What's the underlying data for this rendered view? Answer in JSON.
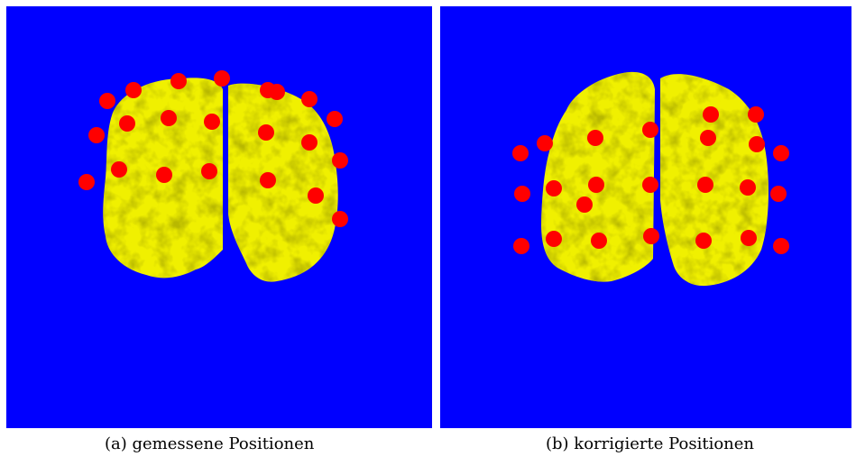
{
  "colors": {
    "background": "#0000ff",
    "brain": "#f0f000",
    "brain_shade": "#b8b800",
    "electrode": "#ff0000"
  },
  "panels": [
    {
      "id": "a",
      "caption": "(a) gemessene Positionen",
      "electrode_count": 22
    },
    {
      "id": "b",
      "caption": "(b) korrigierte Positionen",
      "electrode_count": 24
    }
  ]
}
